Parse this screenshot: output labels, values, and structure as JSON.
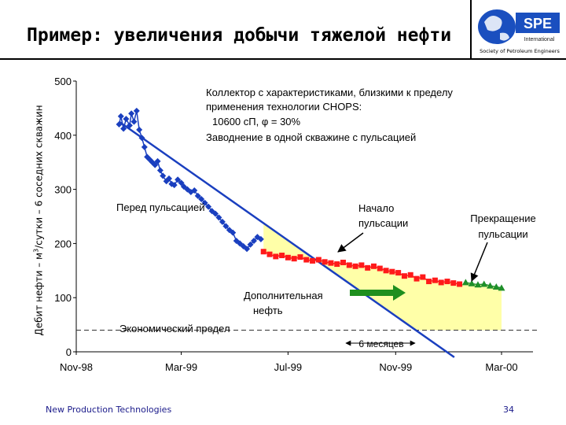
{
  "slide": {
    "title": "Пример: увеличения добычи тяжелой нефти",
    "logo_text": "SPE",
    "logo_sub": "International",
    "logo_caption": "Society of Petroleum Engineers",
    "footer_left": "New Production Technologies",
    "page_number": "34"
  },
  "colors": {
    "blue": "#1a3fbf",
    "red": "#ff1a1a",
    "green_markers": "#1f8f2a",
    "fill_area": "#ffffa8",
    "arrow_green": "#1e8f1e"
  },
  "chart_data": {
    "type": "scatter",
    "ylabel": "Дебит нефти – м³/сутки – 6 соседних скважин",
    "ylabel_main": "Дебит нефти – м",
    "ylabel_sup": "3",
    "ylabel_rest": "/сутки – 6 соседних скважин",
    "ylim": [
      0,
      500
    ],
    "yticks": [
      "0",
      "100",
      "200",
      "300",
      "400",
      "500"
    ],
    "xlim": [
      "1998-11-01",
      "2000-03-01"
    ],
    "xticks": [
      "Nov-98",
      "Mar-99",
      "Jul-99",
      "Nov-99",
      "Mar-00"
    ],
    "economic_limit": 40,
    "annotations": {
      "reservoir_line1": "Коллектор с характеристиками, близкими к пределу",
      "reservoir_line2": "применения технологии CHOPS:",
      "reservoir_line3": "10600 сП, φ = 30%",
      "reservoir_line4": "Заводнение в одной скважине с пульсацией",
      "before_pulsation": "Перед пульсацией",
      "start_pulsation_1": "Начало",
      "start_pulsation_2": "пульсации",
      "stop_pulsation_1": "Прекращение",
      "stop_pulsation_2": "пульсации",
      "additional_oil_1": "Дополнительная",
      "additional_oil_2": "нефть",
      "economic_limit_label": "Экономический предел",
      "six_months": "6 месяцев"
    },
    "series": [
      {
        "name": "",
        "color": "blue",
        "marker": "diamond",
        "points": [
          [
            "1998-12-20",
            420
          ],
          [
            "1998-12-22",
            435
          ],
          [
            "1998-12-25",
            412
          ],
          [
            "1998-12-28",
            430
          ],
          [
            "1999-01-01",
            418
          ],
          [
            "1999-01-03",
            440
          ],
          [
            "1999-01-06",
            425
          ],
          [
            "1999-01-09",
            445
          ],
          [
            "1999-01-12",
            410
          ],
          [
            "1999-01-15",
            395
          ],
          [
            "1999-01-18",
            378
          ],
          [
            "1999-01-21",
            360
          ],
          [
            "1999-01-24",
            355
          ],
          [
            "1999-01-27",
            350
          ],
          [
            "1999-01-30",
            345
          ],
          [
            "1999-02-02",
            352
          ],
          [
            "1999-02-05",
            335
          ],
          [
            "1999-02-08",
            325
          ],
          [
            "1999-02-12",
            315
          ],
          [
            "1999-02-15",
            320
          ],
          [
            "1999-02-18",
            310
          ],
          [
            "1999-02-21",
            308
          ],
          [
            "1999-02-25",
            318
          ],
          [
            "1999-03-01",
            312
          ],
          [
            "1999-03-04",
            305
          ],
          [
            "1999-03-08",
            300
          ],
          [
            "1999-03-12",
            295
          ],
          [
            "1999-03-16",
            298
          ],
          [
            "1999-03-20",
            288
          ],
          [
            "1999-03-24",
            282
          ],
          [
            "1999-03-28",
            275
          ],
          [
            "1999-04-01",
            268
          ],
          [
            "1999-04-05",
            260
          ],
          [
            "1999-04-09",
            255
          ],
          [
            "1999-04-13",
            248
          ],
          [
            "1999-04-17",
            240
          ],
          [
            "1999-04-21",
            232
          ],
          [
            "1999-04-25",
            225
          ],
          [
            "1999-04-29",
            220
          ],
          [
            "1999-05-03",
            205
          ],
          [
            "1999-05-07",
            200
          ],
          [
            "1999-05-11",
            195
          ],
          [
            "1999-05-15",
            190
          ],
          [
            "1999-05-19",
            198
          ],
          [
            "1999-05-23",
            205
          ],
          [
            "1999-05-27",
            212
          ],
          [
            "1999-05-31",
            208
          ]
        ]
      },
      {
        "name": "",
        "color": "red",
        "marker": "square",
        "points": [
          [
            "1999-06-03",
            185
          ],
          [
            "1999-06-10",
            180
          ],
          [
            "1999-06-17",
            176
          ],
          [
            "1999-06-24",
            178
          ],
          [
            "1999-07-01",
            174
          ],
          [
            "1999-07-08",
            172
          ],
          [
            "1999-07-15",
            175
          ],
          [
            "1999-07-22",
            170
          ],
          [
            "1999-07-29",
            168
          ],
          [
            "1999-08-05",
            170
          ],
          [
            "1999-08-12",
            166
          ],
          [
            "1999-08-19",
            164
          ],
          [
            "1999-08-26",
            162
          ],
          [
            "1999-09-02",
            165
          ],
          [
            "1999-09-09",
            160
          ],
          [
            "1999-09-16",
            158
          ],
          [
            "1999-09-23",
            160
          ],
          [
            "1999-09-30",
            155
          ],
          [
            "1999-10-07",
            158
          ],
          [
            "1999-10-14",
            154
          ],
          [
            "1999-10-21",
            150
          ],
          [
            "1999-10-28",
            148
          ],
          [
            "1999-11-04",
            146
          ],
          [
            "1999-11-11",
            140
          ],
          [
            "1999-11-18",
            142
          ],
          [
            "1999-11-25",
            135
          ],
          [
            "1999-12-02",
            138
          ],
          [
            "1999-12-09",
            130
          ],
          [
            "1999-12-16",
            132
          ],
          [
            "1999-12-23",
            128
          ],
          [
            "1999-12-30",
            130
          ],
          [
            "2000-01-06",
            127
          ],
          [
            "2000-01-13",
            125
          ]
        ]
      },
      {
        "name": "",
        "color": "green_markers",
        "marker": "triangle",
        "points": [
          [
            "2000-01-20",
            128
          ],
          [
            "2000-01-27",
            126
          ],
          [
            "2000-02-03",
            124
          ],
          [
            "2000-02-10",
            125
          ],
          [
            "2000-02-17",
            122
          ],
          [
            "2000-02-24",
            120
          ],
          [
            "2000-03-01",
            118
          ]
        ]
      }
    ],
    "trend_line": [
      [
        "1998-12-20",
        425
      ],
      [
        "2000-01-07",
        -10
      ]
    ]
  }
}
